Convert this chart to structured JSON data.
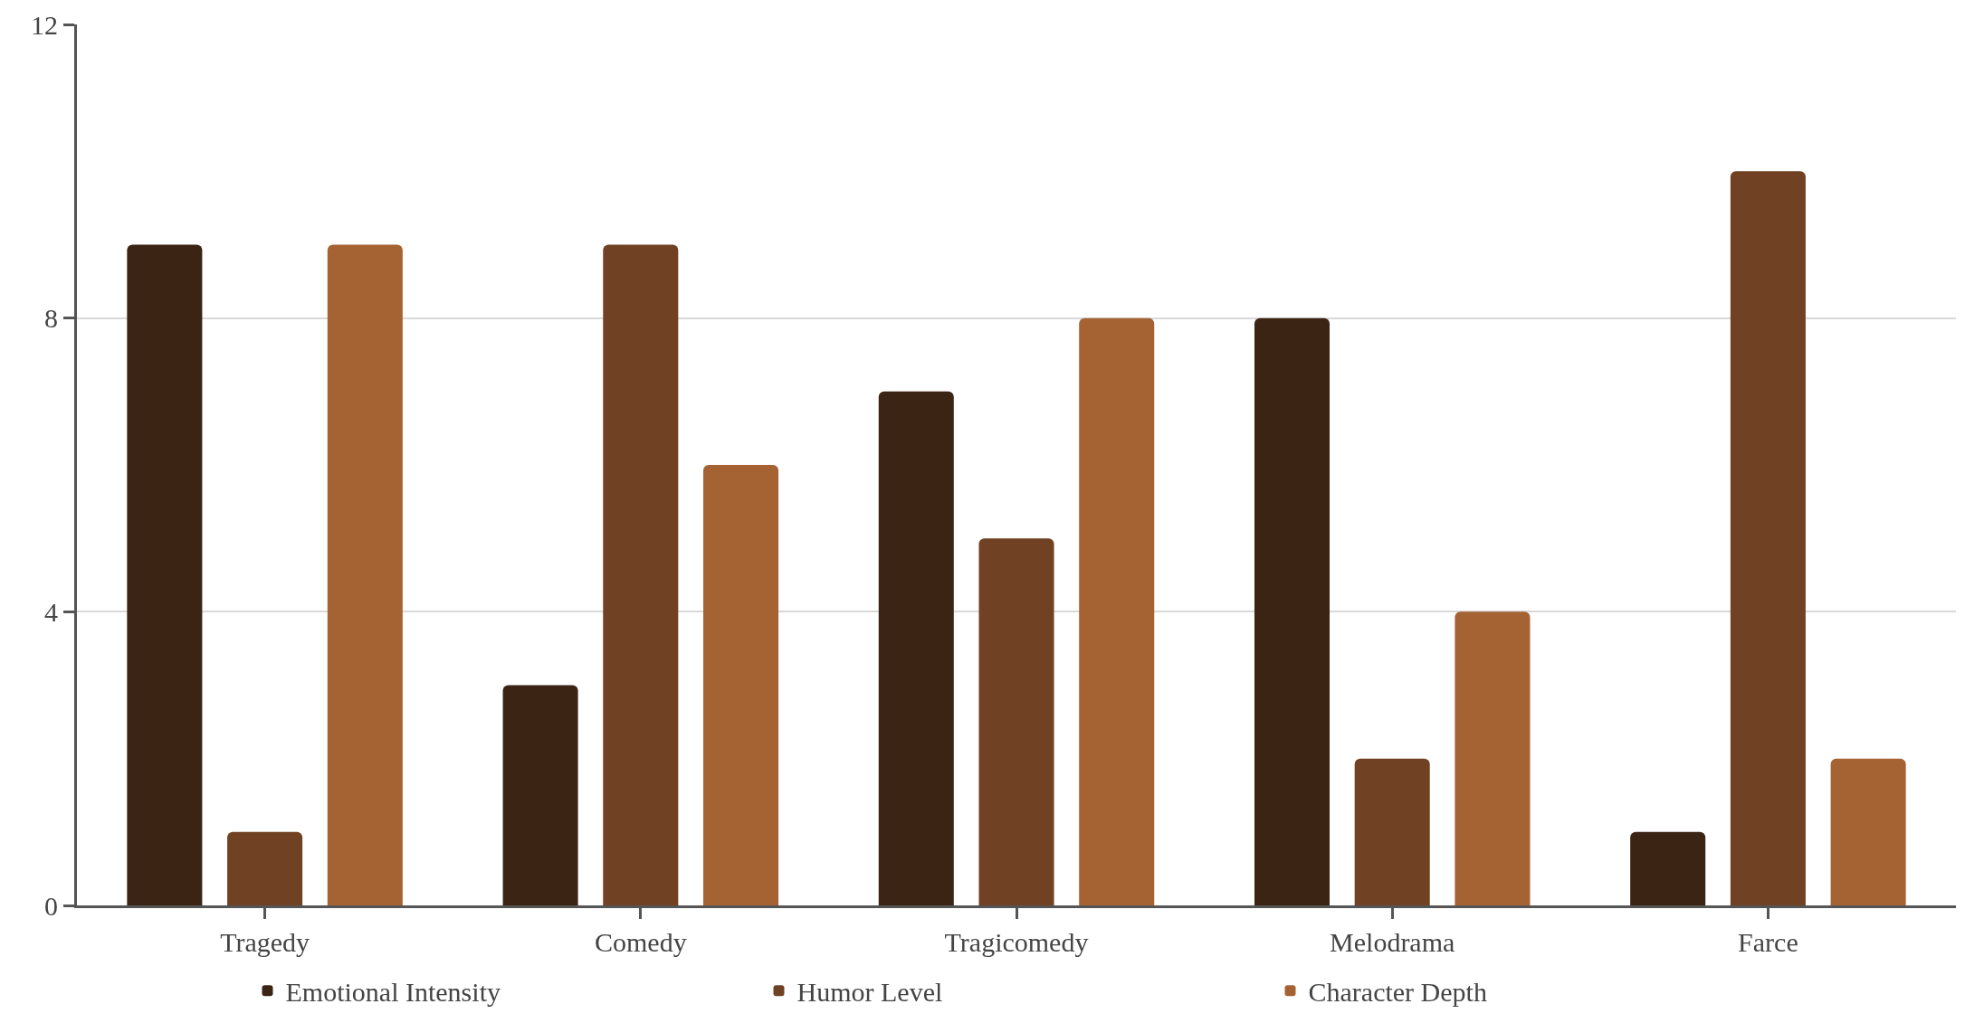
{
  "chart_data": {
    "type": "bar",
    "categories": [
      "Tragedy",
      "Comedy",
      "Tragicomedy",
      "Melodrama",
      "Farce"
    ],
    "series": [
      {
        "name": "Emotional Intensity",
        "color": "#3c2415",
        "values": [
          9,
          3,
          7,
          8,
          1
        ]
      },
      {
        "name": "Humor Level",
        "color": "#704223",
        "values": [
          1,
          9,
          5,
          2,
          10
        ]
      },
      {
        "name": "Character Depth",
        "color": "#a56334",
        "values": [
          9,
          6,
          8,
          4,
          2
        ]
      }
    ],
    "ylim": [
      0,
      12
    ],
    "yticks": [
      0,
      4,
      8,
      12
    ],
    "grid": "y",
    "legend": "bottom"
  }
}
